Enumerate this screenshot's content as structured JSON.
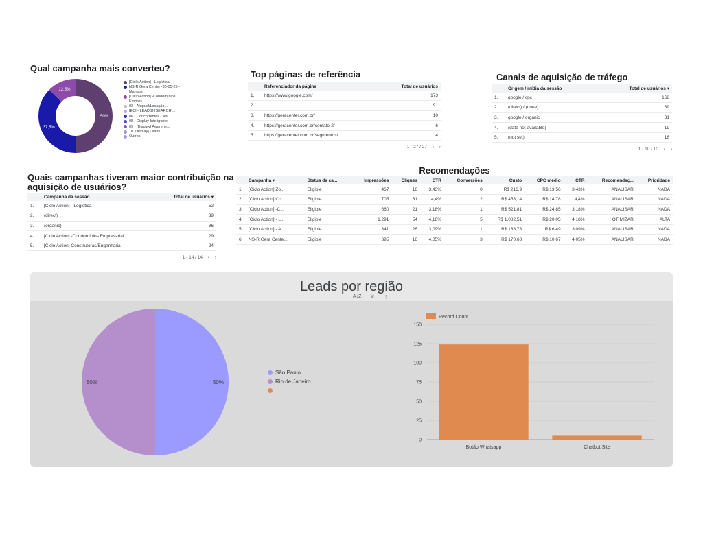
{
  "campaign_chart": {
    "title": "Qual campanha mais converteu?",
    "legend": [
      {
        "label": "[Ciclo Action] - Logística",
        "color": "#5e3f6f"
      },
      {
        "label": "NS-R Gera Center -30-05-25 -Manaus",
        "color": "#1a1aa8"
      },
      {
        "label": "[Ciclo Action] -Condomínios Empres...",
        "color": "#8e4aa8"
      },
      {
        "label": "02 - Aluguel/Locação...",
        "color": "#c7b3e0"
      },
      {
        "label": "[ECI]-[LEADS]-[SEARCH]...",
        "color": "#b0a8f0"
      },
      {
        "label": "06 - Concorrentes - Apr...",
        "color": "#2a2ad0"
      },
      {
        "label": "08 - Display Inteligente",
        "color": "#4a4ae0"
      },
      {
        "label": "09 - [Display] Awarene...",
        "color": "#7b5fb8"
      },
      {
        "label": "10 [Display] Leads",
        "color": "#a78fd0"
      },
      {
        "label": "Outros",
        "color": "#9b9bf5"
      }
    ]
  },
  "campaign_chart_data": {
    "type": "pie",
    "slices": [
      {
        "label": "[Ciclo Action] - Logística",
        "value": 50,
        "display": "50%",
        "color": "#5e3f6f"
      },
      {
        "label": "NS-R Gera Center -30-05-25 -Manaus",
        "value": 37.5,
        "display": "37,5%",
        "color": "#1a1aa8"
      },
      {
        "label": "[Ciclo Action] -Condomínios Empres...",
        "value": 12.5,
        "display": "12,5%",
        "color": "#8e4aa8"
      }
    ]
  },
  "referrers": {
    "title": "Top páginas de referência",
    "headers": [
      "Referenciador da página",
      "Total de usuários"
    ],
    "rows": [
      {
        "idx": "1.",
        "page": "https://www.google.com/",
        "users": "173"
      },
      {
        "idx": "2.",
        "page": "",
        "users": "91"
      },
      {
        "idx": "3.",
        "page": "https://geracenter.com.br/",
        "users": "10"
      },
      {
        "idx": "4.",
        "page": "https://geracenter.com.br/contato-2/",
        "users": "6"
      },
      {
        "idx": "5.",
        "page": "https://geracenter.com.br/segmentos/",
        "users": "4"
      }
    ],
    "pager": "1 - 27 / 27"
  },
  "channels": {
    "title": "Canais de aquisição de tráfego",
    "headers": [
      "Origem / mídia da sessão",
      "Total de usuários ▾"
    ],
    "rows": [
      {
        "idx": "1.",
        "source": "google / cpc",
        "users": "168"
      },
      {
        "idx": "2.",
        "source": "(direct) / (none)",
        "users": "39"
      },
      {
        "idx": "3.",
        "source": "google / organic",
        "users": "31"
      },
      {
        "idx": "4.",
        "source": "(data not available)",
        "users": "19"
      },
      {
        "idx": "5.",
        "source": "(not set)",
        "users": "18"
      }
    ],
    "pager": "1 - 10 / 10"
  },
  "contrib": {
    "title_line1": "Quais campanhas tiveram maior contribuição na",
    "title_line2": "aquisição de usuários?",
    "headers": [
      "Campanha da sessão",
      "Total de usuários ▾"
    ],
    "rows": [
      {
        "idx": "1.",
        "campaign": "[Ciclo Action] - Logística",
        "users": "52"
      },
      {
        "idx": "2.",
        "campaign": "(direct)",
        "users": "39"
      },
      {
        "idx": "3.",
        "campaign": "(organic)",
        "users": "36"
      },
      {
        "idx": "4.",
        "campaign": "[Ciclo Action] -Condomínios Empresarial...",
        "users": "29"
      },
      {
        "idx": "5.",
        "campaign": "[Ciclo Action] Construtoras/Engenharia",
        "users": "24"
      }
    ],
    "pager": "1 - 14 / 14"
  },
  "recs": {
    "title": "Recomendações",
    "headers": [
      "Campanha ▾",
      "Status da ca...",
      "Impressões",
      "Cliques",
      "CTR",
      "Conversões",
      "Custo",
      "CPC médio",
      "CTR",
      "Recomendaç...",
      "Prioridade"
    ],
    "rows": [
      [
        "1.",
        "[Ciclo Action] Zo...",
        "Eligible",
        "467",
        "16",
        "3,43%",
        "0",
        "R$ 216,9",
        "R$ 13,56",
        "3,43%",
        "ANALISAR",
        "NADA"
      ],
      [
        "2.",
        "[Ciclo Action] Co...",
        "Eligible",
        "705",
        "31",
        "4,4%",
        "2",
        "R$ 458,14",
        "R$ 14,78",
        "4,4%",
        "ANALISAR",
        "NADA"
      ],
      [
        "3.",
        "[Ciclo Action] -C...",
        "Eligible",
        "660",
        "21",
        "3,18%",
        "1",
        "R$ 521,81",
        "R$ 24,85",
        "3,18%",
        "ANALISAR",
        "NADA"
      ],
      [
        "4.",
        "[Ciclo Action] - L...",
        "Eligible",
        "1.291",
        "54",
        "4,18%",
        "5",
        "R$ 1.082,51",
        "R$ 20,05",
        "4,18%",
        "OTIMIZAR",
        "ALTA"
      ],
      [
        "5.",
        "[Ciclo Action] - A...",
        "Eligible",
        "841",
        "26",
        "3,09%",
        "1",
        "R$ 168,78",
        "R$ 6,49",
        "3,09%",
        "ANALISAR",
        "NADA"
      ],
      [
        "6.",
        "NS-R Gera Cente...",
        "Eligible",
        "395",
        "16",
        "4,05%",
        "3",
        "R$ 170,68",
        "R$ 10,67",
        "4,05%",
        "ANALISAR",
        "NADA"
      ]
    ]
  },
  "leads": {
    "title": "Leads por região",
    "toolbar": {
      "sort_icon": "sort-az-icon",
      "filter_icon": "filter-icon",
      "more_icon": "more-vert-icon"
    },
    "pie_legend": [
      {
        "label": "São Paulo",
        "color": "#9b9bff"
      },
      {
        "label": "Rio de Janeiro",
        "color": "#b48fcc"
      },
      {
        "label": "",
        "color": "#e08a4f"
      }
    ]
  },
  "chart_data": [
    {
      "type": "pie",
      "slices": [
        {
          "label": "São Paulo",
          "value": 50,
          "display": "50%",
          "color": "#9b9bff"
        },
        {
          "label": "Rio de Janeiro",
          "value": 50,
          "display": "50%",
          "color": "#b48fcc"
        }
      ]
    },
    {
      "type": "bar",
      "categories": [
        "Botão Whatsapp",
        "Chatbot Site"
      ],
      "series": [
        {
          "name": "Record Count",
          "values": [
            124,
            5
          ],
          "color": "#e08a4f"
        }
      ],
      "ylim": [
        0,
        150
      ],
      "yticks": [
        "0",
        "25",
        "50",
        "75",
        "100",
        "125",
        "150"
      ],
      "grid": true,
      "legend": "top-left"
    }
  ]
}
